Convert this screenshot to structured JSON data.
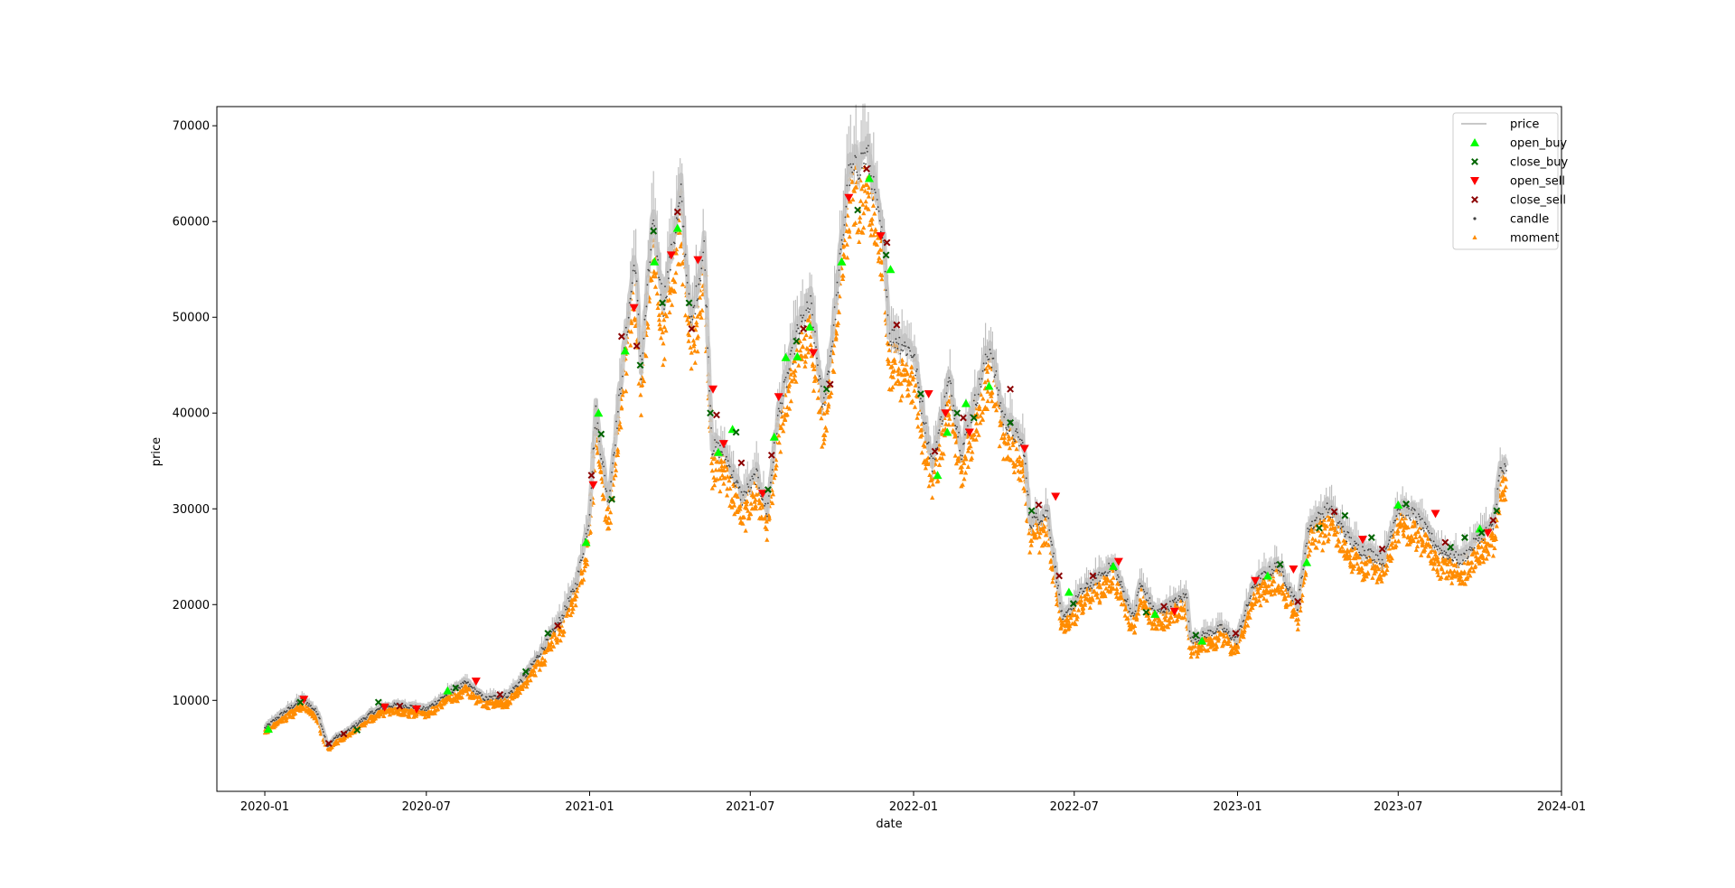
{
  "chart_data": {
    "type": "scatter",
    "title": "",
    "xlabel": "date",
    "ylabel": "price",
    "ylim": [
      500,
      72000
    ],
    "xlim": [
      "2019-11-08",
      "2024-01-01"
    ],
    "x_ticks": [
      "2020-01",
      "2020-07",
      "2021-01",
      "2021-07",
      "2022-01",
      "2022-07",
      "2023-01",
      "2023-07",
      "2024-01"
    ],
    "y_ticks": [
      10000,
      20000,
      30000,
      40000,
      50000,
      60000,
      70000
    ],
    "legend_position": "top-right",
    "grid": false,
    "colors": {
      "price": "#c8c8c8",
      "open_buy": "#00ff00",
      "close_buy": "#006400",
      "open_sell": "#ff0000",
      "close_sell": "#8b0000",
      "candle": "#404040",
      "moment": "#ff8c00"
    },
    "series": [
      {
        "name": "price",
        "kind": "line"
      },
      {
        "name": "open_buy",
        "kind": "marker-triangle-up"
      },
      {
        "name": "close_buy",
        "kind": "marker-x"
      },
      {
        "name": "open_sell",
        "kind": "marker-triangle-down"
      },
      {
        "name": "close_sell",
        "kind": "marker-x"
      },
      {
        "name": "candle",
        "kind": "marker-dot"
      },
      {
        "name": "moment",
        "kind": "marker-small-triangle"
      }
    ],
    "price_path": [
      [
        "2020-01-01",
        7200
      ],
      [
        "2020-01-20",
        8700
      ],
      [
        "2020-02-13",
        10300
      ],
      [
        "2020-03-01",
        8800
      ],
      [
        "2020-03-12",
        5200
      ],
      [
        "2020-03-20",
        6200
      ],
      [
        "2020-04-01",
        6700
      ],
      [
        "2020-04-30",
        8800
      ],
      [
        "2020-05-15",
        9500
      ],
      [
        "2020-06-01",
        9700
      ],
      [
        "2020-07-01",
        9200
      ],
      [
        "2020-07-27",
        11000
      ],
      [
        "2020-08-15",
        12000
      ],
      [
        "2020-09-05",
        10300
      ],
      [
        "2020-10-01",
        10700
      ],
      [
        "2020-10-21",
        12800
      ],
      [
        "2020-11-15",
        16500
      ],
      [
        "2020-12-01",
        19000
      ],
      [
        "2020-12-17",
        22500
      ],
      [
        "2020-12-31",
        29000
      ],
      [
        "2021-01-08",
        40500
      ],
      [
        "2021-01-22",
        31000
      ],
      [
        "2021-02-08",
        46000
      ],
      [
        "2021-02-21",
        57000
      ],
      [
        "2021-02-28",
        45000
      ],
      [
        "2021-03-13",
        60500
      ],
      [
        "2021-03-25",
        52000
      ],
      [
        "2021-04-14",
        63500
      ],
      [
        "2021-04-25",
        49500
      ],
      [
        "2021-05-10",
        58000
      ],
      [
        "2021-05-19",
        37000
      ],
      [
        "2021-06-01",
        36500
      ],
      [
        "2021-06-22",
        31500
      ],
      [
        "2021-07-08",
        34000
      ],
      [
        "2021-07-20",
        30000
      ],
      [
        "2021-08-01",
        40000
      ],
      [
        "2021-08-23",
        49000
      ],
      [
        "2021-09-07",
        52000
      ],
      [
        "2021-09-21",
        41000
      ],
      [
        "2021-10-01",
        48000
      ],
      [
        "2021-10-20",
        65500
      ],
      [
        "2021-11-10",
        68000
      ],
      [
        "2021-11-30",
        57000
      ],
      [
        "2021-12-04",
        49000
      ],
      [
        "2021-12-31",
        47000
      ],
      [
        "2022-01-22",
        35000
      ],
      [
        "2022-02-10",
        44000
      ],
      [
        "2022-02-24",
        36500
      ],
      [
        "2022-03-28",
        47500
      ],
      [
        "2022-04-12",
        40000
      ],
      [
        "2022-05-05",
        37000
      ],
      [
        "2022-05-12",
        29000
      ],
      [
        "2022-06-01",
        30000
      ],
      [
        "2022-06-18",
        18500
      ],
      [
        "2022-07-08",
        21500
      ],
      [
        "2022-08-14",
        24500
      ],
      [
        "2022-09-06",
        18800
      ],
      [
        "2022-09-13",
        22500
      ],
      [
        "2022-10-01",
        19300
      ],
      [
        "2022-11-05",
        21300
      ],
      [
        "2022-11-09",
        16500
      ],
      [
        "2022-12-14",
        17800
      ],
      [
        "2022-12-31",
        16500
      ],
      [
        "2023-01-20",
        22500
      ],
      [
        "2023-02-16",
        24500
      ],
      [
        "2023-03-10",
        20000
      ],
      [
        "2023-03-22",
        28500
      ],
      [
        "2023-04-14",
        30500
      ],
      [
        "2023-05-12",
        26500
      ],
      [
        "2023-06-15",
        25000
      ],
      [
        "2023-06-30",
        30500
      ],
      [
        "2023-07-20",
        29800
      ],
      [
        "2023-08-17",
        26000
      ],
      [
        "2023-09-11",
        25000
      ],
      [
        "2023-10-01",
        27500
      ],
      [
        "2023-10-16",
        28500
      ],
      [
        "2023-10-24",
        34500
      ],
      [
        "2023-10-31",
        34500
      ]
    ],
    "trade_markers": {
      "open_buy": [
        [
          "2020-01-05",
          7000
        ],
        [
          "2020-07-25",
          11000
        ],
        [
          "2020-12-28",
          26500
        ],
        [
          "2021-01-11",
          40000
        ],
        [
          "2021-02-10",
          46500
        ],
        [
          "2021-03-15",
          55800
        ],
        [
          "2021-04-10",
          59300
        ],
        [
          "2021-05-26",
          35900
        ],
        [
          "2021-06-11",
          38300
        ],
        [
          "2021-07-28",
          37500
        ],
        [
          "2021-08-10",
          45800
        ],
        [
          "2021-08-23",
          45900
        ],
        [
          "2021-09-06",
          49000
        ],
        [
          "2021-10-12",
          55800
        ],
        [
          "2021-11-12",
          64500
        ],
        [
          "2021-12-06",
          55000
        ],
        [
          "2022-01-28",
          33500
        ],
        [
          "2022-02-08",
          38000
        ],
        [
          "2022-03-01",
          41000
        ],
        [
          "2022-03-27",
          42800
        ],
        [
          "2022-06-25",
          21300
        ],
        [
          "2022-08-14",
          24000
        ],
        [
          "2022-09-30",
          19000
        ],
        [
          "2022-11-22",
          16200
        ],
        [
          "2023-02-04",
          23000
        ],
        [
          "2023-03-20",
          24400
        ],
        [
          "2023-07-01",
          30400
        ],
        [
          "2023-10-01",
          27900
        ]
      ],
      "close_buy": [
        [
          "2020-02-10",
          9800
        ],
        [
          "2020-04-14",
          6900
        ],
        [
          "2020-05-08",
          9800
        ],
        [
          "2020-08-03",
          11300
        ],
        [
          "2020-10-21",
          13000
        ],
        [
          "2020-11-15",
          17000
        ],
        [
          "2021-01-14",
          37800
        ],
        [
          "2021-01-26",
          31000
        ],
        [
          "2021-02-27",
          45000
        ],
        [
          "2021-03-14",
          59000
        ],
        [
          "2021-03-24",
          51500
        ],
        [
          "2021-04-23",
          51500
        ],
        [
          "2021-05-17",
          40000
        ],
        [
          "2021-06-15",
          38000
        ],
        [
          "2021-07-21",
          32000
        ],
        [
          "2021-08-22",
          47500
        ],
        [
          "2021-09-25",
          42500
        ],
        [
          "2021-10-30",
          61200
        ],
        [
          "2021-12-01",
          56500
        ],
        [
          "2022-01-09",
          42000
        ],
        [
          "2022-02-19",
          40000
        ],
        [
          "2022-03-10",
          39500
        ],
        [
          "2022-04-20",
          39000
        ],
        [
          "2022-05-14",
          29800
        ],
        [
          "2022-06-30",
          20100
        ],
        [
          "2022-09-20",
          19200
        ],
        [
          "2022-11-15",
          16800
        ],
        [
          "2023-02-18",
          24200
        ],
        [
          "2023-04-03",
          28000
        ],
        [
          "2023-05-02",
          29300
        ],
        [
          "2023-06-01",
          27000
        ],
        [
          "2023-07-10",
          30500
        ],
        [
          "2023-08-29",
          26000
        ],
        [
          "2023-09-14",
          27000
        ],
        [
          "2023-10-03",
          27500
        ],
        [
          "2023-10-20",
          29800
        ]
      ],
      "open_sell": [
        [
          "2020-02-14",
          10100
        ],
        [
          "2020-05-15",
          9300
        ],
        [
          "2020-06-20",
          9100
        ],
        [
          "2020-08-26",
          12000
        ],
        [
          "2021-01-05",
          32500
        ],
        [
          "2021-02-20",
          51000
        ],
        [
          "2021-04-03",
          56500
        ],
        [
          "2021-05-03",
          56000
        ],
        [
          "2021-05-20",
          42500
        ],
        [
          "2021-06-01",
          36800
        ],
        [
          "2021-07-15",
          31600
        ],
        [
          "2021-08-02",
          41700
        ],
        [
          "2021-09-10",
          46300
        ],
        [
          "2021-10-20",
          62500
        ],
        [
          "2021-11-25",
          58500
        ],
        [
          "2022-01-18",
          42000
        ],
        [
          "2022-02-06",
          40000
        ],
        [
          "2022-03-05",
          38000
        ],
        [
          "2022-05-06",
          36300
        ],
        [
          "2022-06-10",
          31300
        ],
        [
          "2022-08-20",
          24500
        ],
        [
          "2022-10-22",
          19300
        ],
        [
          "2023-01-21",
          22500
        ],
        [
          "2023-03-05",
          23700
        ],
        [
          "2023-05-22",
          26800
        ],
        [
          "2023-08-12",
          29500
        ],
        [
          "2023-10-10",
          27500
        ]
      ],
      "close_sell": [
        [
          "2020-03-13",
          5500
        ],
        [
          "2020-03-30",
          6500
        ],
        [
          "2020-06-01",
          9400
        ],
        [
          "2020-09-22",
          10600
        ],
        [
          "2020-11-26",
          17800
        ],
        [
          "2021-01-03",
          33500
        ],
        [
          "2021-02-06",
          48000
        ],
        [
          "2021-02-23",
          47000
        ],
        [
          "2021-04-10",
          61000
        ],
        [
          "2021-04-26",
          48800
        ],
        [
          "2021-05-24",
          39800
        ],
        [
          "2021-06-21",
          34800
        ],
        [
          "2021-07-25",
          35600
        ],
        [
          "2021-08-30",
          48800
        ],
        [
          "2021-09-29",
          43000
        ],
        [
          "2021-11-09",
          65500
        ],
        [
          "2021-12-02",
          57800
        ],
        [
          "2021-12-13",
          49200
        ],
        [
          "2022-01-25",
          36000
        ],
        [
          "2022-02-26",
          39500
        ],
        [
          "2022-04-20",
          42500
        ],
        [
          "2022-05-22",
          30400
        ],
        [
          "2022-06-14",
          23000
        ],
        [
          "2022-07-22",
          23000
        ],
        [
          "2022-10-10",
          19800
        ],
        [
          "2022-12-30",
          17000
        ],
        [
          "2023-03-10",
          20300
        ],
        [
          "2023-04-20",
          29700
        ],
        [
          "2023-06-13",
          25800
        ],
        [
          "2023-08-23",
          26500
        ],
        [
          "2023-10-16",
          28800
        ]
      ]
    }
  }
}
